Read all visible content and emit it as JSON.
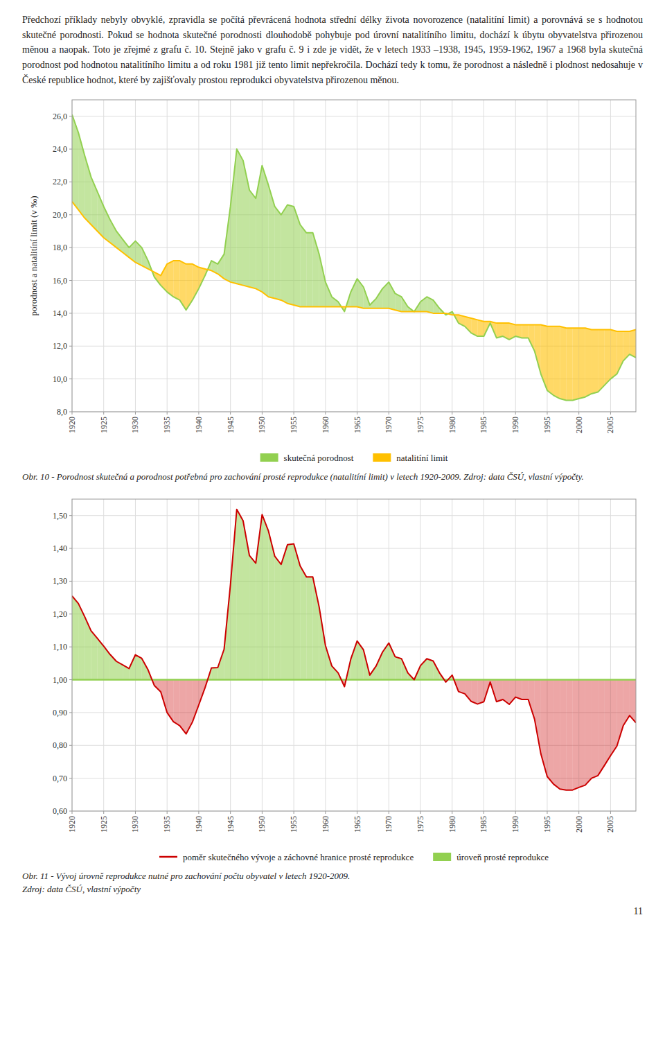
{
  "text": "Předchozí příklady nebyly obvyklé, zpravidla se počítá převrácená hodnota střední délky života novorozence (natalitíní limit) a porovnává se s hodnotou skutečné porodnosti. Pokud se hodnota skutečné porodnosti dlouhodobě pohybuje pod úrovní natalitíního limitu, dochází k úbytu obyvatelstva přirozenou měnou a naopak. Toto je zřejmé z grafu č. 10. Stejně jako v grafu č. 9 i zde je vidět, že v letech 1933 –1938, 1945, 1959-1962, 1967 a 1968 byla skutečná porodnost pod hodnotou natalitíního limitu a od roku 1981 již tento limit nepřekročila. Dochází tedy k tomu, že porodnost a následně i plodnost nedosahuje v České republice hodnot, které by zajišťovaly prostou reprodukci obyvatelstva přirozenou měnou.",
  "page_number": "11",
  "chart_data": [
    {
      "type": "line",
      "ylabel": "porodnost a natalitíní limit  (v ‰)",
      "caption": [
        "Obr. 10 - Porodnost skutečná a porodnost potřebná pro zachování prosté reprodukce (natalitíní limit) v letech 1920-2009. Zdroj: data ČSÚ, vlastní výpočty."
      ],
      "x": [
        1920,
        1921,
        1922,
        1923,
        1924,
        1925,
        1926,
        1927,
        1928,
        1929,
        1930,
        1931,
        1932,
        1933,
        1934,
        1935,
        1936,
        1937,
        1938,
        1939,
        1940,
        1941,
        1942,
        1943,
        1944,
        1945,
        1946,
        1947,
        1948,
        1949,
        1950,
        1951,
        1952,
        1953,
        1954,
        1955,
        1956,
        1957,
        1958,
        1959,
        1960,
        1961,
        1962,
        1963,
        1964,
        1965,
        1966,
        1967,
        1968,
        1969,
        1970,
        1971,
        1972,
        1973,
        1974,
        1975,
        1976,
        1977,
        1978,
        1979,
        1980,
        1981,
        1982,
        1983,
        1984,
        1985,
        1986,
        1987,
        1988,
        1989,
        1990,
        1991,
        1992,
        1993,
        1994,
        1995,
        1996,
        1997,
        1998,
        1999,
        2000,
        2001,
        2002,
        2003,
        2004,
        2005,
        2006,
        2007,
        2008,
        2009
      ],
      "series": [
        {
          "name": "skutečná porodnost",
          "color": "#92D050",
          "values": [
            26.1,
            25.0,
            23.6,
            22.3,
            21.4,
            20.5,
            19.7,
            19.0,
            18.5,
            18.0,
            18.4,
            18.0,
            17.2,
            16.2,
            15.7,
            15.3,
            15.0,
            14.8,
            14.2,
            14.8,
            15.5,
            16.3,
            17.2,
            17.0,
            17.6,
            20.5,
            24.0,
            23.3,
            21.5,
            21.0,
            23.0,
            21.8,
            20.5,
            20.0,
            20.6,
            20.5,
            19.4,
            18.9,
            18.9,
            17.6,
            15.9,
            15.0,
            14.7,
            14.1,
            15.3,
            16.1,
            15.6,
            14.5,
            14.9,
            15.5,
            15.9,
            15.2,
            15.0,
            14.4,
            14.1,
            14.7,
            15.0,
            14.8,
            14.3,
            13.9,
            14.1,
            13.4,
            13.2,
            12.8,
            12.6,
            12.6,
            13.4,
            12.5,
            12.6,
            12.4,
            12.6,
            12.5,
            12.5,
            11.7,
            10.3,
            9.3,
            9.0,
            8.8,
            8.7,
            8.7,
            8.8,
            8.9,
            9.1,
            9.2,
            9.6,
            10.0,
            10.3,
            11.1,
            11.5,
            11.3
          ]
        },
        {
          "name": "natalitíní limit",
          "color": "#FFC000",
          "values": [
            20.8,
            20.3,
            19.8,
            19.4,
            19.0,
            18.6,
            18.3,
            18.0,
            17.7,
            17.4,
            17.1,
            16.9,
            16.7,
            16.5,
            16.3,
            17.0,
            17.2,
            17.2,
            17.0,
            17.0,
            16.8,
            16.7,
            16.6,
            16.4,
            16.1,
            15.9,
            15.8,
            15.7,
            15.6,
            15.5,
            15.3,
            15.0,
            14.9,
            14.8,
            14.6,
            14.5,
            14.4,
            14.4,
            14.4,
            14.4,
            14.4,
            14.4,
            14.4,
            14.4,
            14.4,
            14.4,
            14.3,
            14.3,
            14.3,
            14.3,
            14.3,
            14.2,
            14.1,
            14.1,
            14.1,
            14.1,
            14.1,
            14.0,
            14.0,
            14.0,
            13.9,
            13.9,
            13.8,
            13.7,
            13.6,
            13.5,
            13.5,
            13.4,
            13.4,
            13.4,
            13.3,
            13.3,
            13.3,
            13.3,
            13.3,
            13.2,
            13.2,
            13.2,
            13.1,
            13.1,
            13.1,
            13.1,
            13.0,
            13.0,
            13.0,
            13.0,
            12.9,
            12.9,
            12.9,
            13.0
          ]
        }
      ],
      "xlim": [
        1920,
        2009
      ],
      "xticks": [
        1920,
        1925,
        1930,
        1935,
        1940,
        1945,
        1950,
        1955,
        1960,
        1965,
        1970,
        1975,
        1980,
        1985,
        1990,
        1995,
        2000,
        2005
      ],
      "ylim": [
        8.0,
        27.0
      ],
      "yticks": [
        {
          "value": 8.0,
          "label": "8,0"
        },
        {
          "value": 10.0,
          "label": "10,0"
        },
        {
          "value": 12.0,
          "label": "12,0"
        },
        {
          "value": 14.0,
          "label": "14,0"
        },
        {
          "value": 16.0,
          "label": "16,0"
        },
        {
          "value": 18.0,
          "label": "18,0"
        },
        {
          "value": 20.0,
          "label": "20,0"
        },
        {
          "value": 22.0,
          "label": "22,0"
        },
        {
          "value": 24.0,
          "label": "24,0"
        },
        {
          "value": 26.0,
          "label": "26,0"
        }
      ],
      "grid": true
    },
    {
      "type": "line",
      "caption": [
        "Obr. 11 - Vývoj úrovně reprodukce nutné pro zachování počtu obyvatel v letech 1920-2009.",
        "Zdroj: data ČSÚ, vlastní výpočty"
      ],
      "x": [
        1920,
        1921,
        1922,
        1923,
        1924,
        1925,
        1926,
        1927,
        1928,
        1929,
        1930,
        1931,
        1932,
        1933,
        1934,
        1935,
        1936,
        1937,
        1938,
        1939,
        1940,
        1941,
        1942,
        1943,
        1944,
        1945,
        1946,
        1947,
        1948,
        1949,
        1950,
        1951,
        1952,
        1953,
        1954,
        1955,
        1956,
        1957,
        1958,
        1959,
        1960,
        1961,
        1962,
        1963,
        1964,
        1965,
        1966,
        1967,
        1968,
        1969,
        1970,
        1971,
        1972,
        1973,
        1974,
        1975,
        1976,
        1977,
        1978,
        1979,
        1980,
        1981,
        1982,
        1983,
        1984,
        1985,
        1986,
        1987,
        1988,
        1989,
        1990,
        1991,
        1992,
        1993,
        1994,
        1995,
        1996,
        1997,
        1998,
        1999,
        2000,
        2001,
        2002,
        2003,
        2004,
        2005,
        2006,
        2007,
        2008,
        2009
      ],
      "series": [
        {
          "name": "poměr skutečného vývoje a záchovné hranice prosté reprodukce",
          "color": "#CC0000",
          "values": [
            1.255,
            1.232,
            1.192,
            1.149,
            1.126,
            1.102,
            1.077,
            1.056,
            1.045,
            1.034,
            1.076,
            1.065,
            1.03,
            0.982,
            0.963,
            0.9,
            0.872,
            0.86,
            0.835,
            0.871,
            0.923,
            0.976,
            1.036,
            1.037,
            1.093,
            1.289,
            1.519,
            1.484,
            1.378,
            1.355,
            1.503,
            1.453,
            1.376,
            1.351,
            1.411,
            1.414,
            1.347,
            1.313,
            1.313,
            1.222,
            1.104,
            1.042,
            1.021,
            0.979,
            1.063,
            1.118,
            1.091,
            1.014,
            1.042,
            1.084,
            1.112,
            1.07,
            1.064,
            1.021,
            1.0,
            1.043,
            1.064,
            1.057,
            1.021,
            0.993,
            1.014,
            0.964,
            0.957,
            0.934,
            0.926,
            0.933,
            0.993,
            0.933,
            0.94,
            0.925,
            0.947,
            0.94,
            0.94,
            0.88,
            0.774,
            0.705,
            0.682,
            0.667,
            0.664,
            0.664,
            0.672,
            0.679,
            0.7,
            0.708,
            0.738,
            0.769,
            0.798,
            0.86,
            0.891,
            0.869
          ]
        }
      ],
      "reference": {
        "name": "úroveň prosté reprodukce",
        "color": "#92D050",
        "value": 1.0
      },
      "xlim": [
        1920,
        2009
      ],
      "xticks": [
        1920,
        1925,
        1930,
        1935,
        1940,
        1945,
        1950,
        1955,
        1960,
        1965,
        1970,
        1975,
        1980,
        1985,
        1990,
        1995,
        2000,
        2005
      ],
      "ylim": [
        0.6,
        1.55
      ],
      "yticks": [
        {
          "value": 0.6,
          "label": "0,60"
        },
        {
          "value": 0.7,
          "label": "0,70"
        },
        {
          "value": 0.8,
          "label": "0,80"
        },
        {
          "value": 0.9,
          "label": "0,90"
        },
        {
          "value": 1.0,
          "label": "1,00"
        },
        {
          "value": 1.1,
          "label": "1,10"
        },
        {
          "value": 1.2,
          "label": "1,20"
        },
        {
          "value": 1.3,
          "label": "1,30"
        },
        {
          "value": 1.4,
          "label": "1,40"
        },
        {
          "value": 1.5,
          "label": "1,50"
        }
      ],
      "grid": true
    }
  ]
}
